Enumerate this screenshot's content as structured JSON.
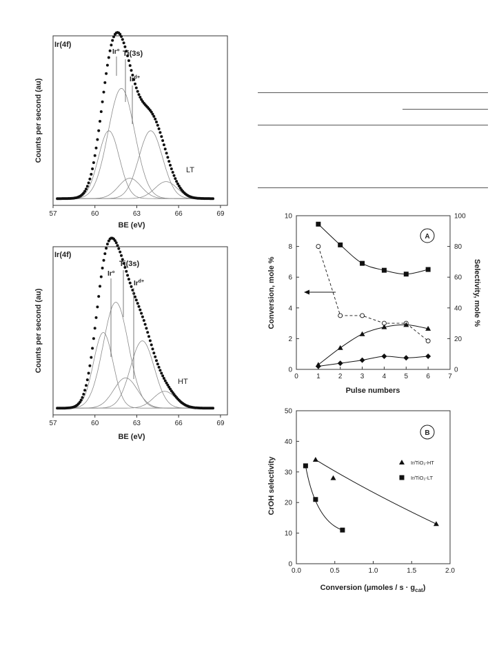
{
  "chart_data": [
    {
      "id": "xps_lt",
      "type": "line",
      "panel_label": "Ir(4f)",
      "corner_label": "LT",
      "xlabel": "BE (eV)",
      "ylabel": "Counts per second (au)",
      "xlim": [
        57,
        69.5
      ],
      "ylim": [
        0,
        100
      ],
      "xticks": [
        "57",
        "60",
        "63",
        "66",
        "69"
      ],
      "peak_labels": [
        "Ir°",
        "Ti(3s)",
        "Ir^{d+}"
      ],
      "fit_peaks": [
        {
          "center": 61.0,
          "height": 40,
          "width": 0.75
        },
        {
          "center": 61.9,
          "height": 65,
          "width": 0.95
        },
        {
          "center": 62.5,
          "height": 12,
          "width": 0.8
        },
        {
          "center": 64.0,
          "height": 40,
          "width": 0.85
        },
        {
          "center": 65.1,
          "height": 10,
          "width": 0.8
        }
      ],
      "baseline": 4
    },
    {
      "id": "xps_ht",
      "type": "line",
      "panel_label": "Ir(4f)",
      "corner_label": "HT",
      "xlabel": "BE (eV)",
      "ylabel": "Counts per second (au)",
      "xlim": [
        57,
        69.5
      ],
      "ylim": [
        0,
        100
      ],
      "xticks": [
        "57",
        "60",
        "63",
        "66",
        "69"
      ],
      "peak_labels": [
        "Ir°",
        "Ti(3s)",
        "Ir^{d+}"
      ],
      "fit_peaks": [
        {
          "center": 60.6,
          "height": 45,
          "width": 0.7
        },
        {
          "center": 61.5,
          "height": 63,
          "width": 0.9
        },
        {
          "center": 62.2,
          "height": 18,
          "width": 0.85
        },
        {
          "center": 63.4,
          "height": 40,
          "width": 0.85
        },
        {
          "center": 65.0,
          "height": 10,
          "width": 0.8
        }
      ],
      "baseline": 4
    },
    {
      "id": "panel_a",
      "type": "scatter",
      "panel_letter": "A",
      "xlabel": "Pulse numbers",
      "ylabel_left": "Conversion, mole %",
      "ylabel_right": "Selectivity, mole %",
      "xlim": [
        0,
        7
      ],
      "ylim_left": [
        0,
        10
      ],
      "ylim_right": [
        0,
        100
      ],
      "xticks": [
        "0",
        "1",
        "2",
        "3",
        "4",
        "5",
        "6",
        "7"
      ],
      "yticks_left": [
        "0",
        "2",
        "4",
        "6",
        "8",
        "10"
      ],
      "yticks_right": [
        "0",
        "20",
        "40",
        "60",
        "80",
        "100"
      ],
      "x": [
        1,
        2,
        3,
        4,
        5,
        6
      ],
      "series": [
        {
          "marker": "square",
          "axis": "left",
          "line": "smooth",
          "values": [
            9.45,
            8.1,
            6.9,
            6.45,
            6.2,
            6.5
          ]
        },
        {
          "marker": "open-circle",
          "axis": "left",
          "line": "dashed-step",
          "values": [
            8.0,
            3.5,
            3.5,
            3.0,
            3.0,
            1.85
          ]
        },
        {
          "marker": "triangle",
          "axis": "left",
          "line": "smooth",
          "values": [
            0.3,
            1.4,
            2.3,
            2.75,
            2.9,
            2.65
          ]
        },
        {
          "marker": "diamond",
          "axis": "left",
          "line": "smooth",
          "values": [
            0.2,
            0.4,
            0.6,
            0.85,
            0.75,
            0.85
          ]
        }
      ]
    },
    {
      "id": "panel_b",
      "type": "scatter",
      "panel_letter": "B",
      "xlabel": "Conversion (μmoles / s · g",
      "xlabel_sub": "cat",
      "xlabel_end": ")",
      "ylabel": "CrOH selectivity",
      "xlim": [
        0,
        2.0
      ],
      "ylim": [
        0,
        50
      ],
      "xticks": [
        "0.0",
        "0.5",
        "1.0",
        "1.5",
        "2.0"
      ],
      "yticks": [
        "0",
        "10",
        "20",
        "30",
        "40",
        "50"
      ],
      "series": [
        {
          "name": "Ir/TiO₂-HT",
          "marker": "triangle",
          "x": [
            0.25,
            0.48,
            1.82
          ],
          "values": [
            34,
            28,
            13
          ]
        },
        {
          "name": "Ir/TiO₂-LT",
          "marker": "square",
          "x": [
            0.12,
            0.25,
            0.6
          ],
          "values": [
            32,
            21,
            11
          ]
        }
      ]
    }
  ]
}
